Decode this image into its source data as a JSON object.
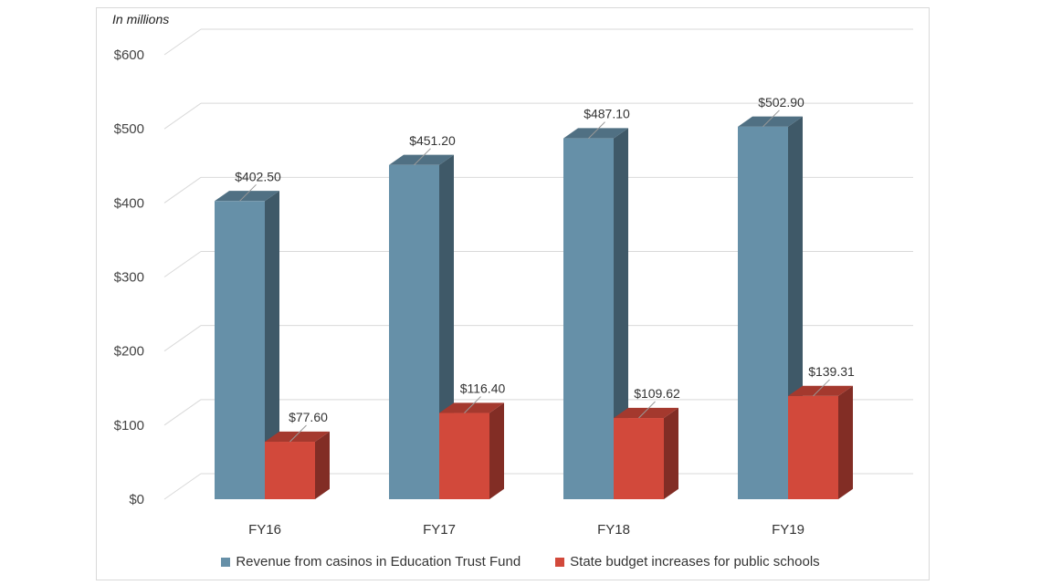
{
  "chart_data": {
    "type": "bar",
    "subtitle": "In millions",
    "categories": [
      "FY16",
      "FY17",
      "FY18",
      "FY19"
    ],
    "series": [
      {
        "name": "Revenue from casinos in Education Trust Fund",
        "values": [
          402.5,
          451.2,
          487.1,
          502.9
        ],
        "labels": [
          "$402.50",
          "$451.20",
          "$487.10",
          "$502.90"
        ],
        "color": "#6690a8"
      },
      {
        "name": "State budget increases for public schools",
        "values": [
          77.6,
          116.4,
          109.62,
          139.31
        ],
        "labels": [
          "$77.60",
          "$116.40",
          "$109.62",
          "$139.31"
        ],
        "color": "#d2493b"
      }
    ],
    "ylim": [
      0,
      600
    ],
    "yticks": [
      0,
      100,
      200,
      300,
      400,
      500,
      600
    ],
    "ytick_labels": [
      "$0",
      "$100",
      "$200",
      "$300",
      "$400",
      "$500",
      "$600"
    ],
    "grid": true,
    "legend_position": "bottom",
    "style": "3d-clustered-column"
  }
}
